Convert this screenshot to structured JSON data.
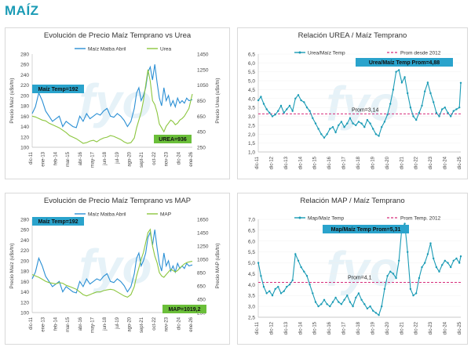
{
  "page_title": "MAÍZ",
  "chart_data": [
    {
      "type": "line",
      "title": "Evolución de Precio Maíz Temprano vs Urea",
      "ylabel": "Precio Maíz (u$s/tn)",
      "y2label": "Precio Urea (u$s/tn)",
      "ylim": [
        100,
        280
      ],
      "yticks": [
        100,
        120,
        140,
        160,
        180,
        200,
        220,
        240,
        260,
        280
      ],
      "y2lim": [
        250,
        1450
      ],
      "y2ticks": [
        250,
        450,
        650,
        850,
        1050,
        1250,
        1450
      ],
      "x_start": 2011.917,
      "x_end": 2026.0,
      "xticks": [
        "dic-11",
        "ene-13",
        "feb-14",
        "mar-15",
        "abr-16",
        "may-17",
        "jun-18",
        "jul-19",
        "ago-20",
        "sept-21",
        "oct-22",
        "nov-23",
        "dic-24",
        "ene-26"
      ],
      "legend": "top-center",
      "badges": [
        {
          "text": "Maíz Temp=192",
          "style": "blue"
        },
        {
          "text": "UREA=936",
          "style": "green"
        }
      ],
      "series": [
        {
          "name": "Maíz Matba Abril",
          "axis": "left",
          "color": "#2a8fd4",
          "x": [
            2011.92,
            2012.2,
            2012.5,
            2012.8,
            2013.1,
            2013.4,
            2013.7,
            2014.0,
            2014.3,
            2014.6,
            2014.9,
            2015.2,
            2015.5,
            2015.8,
            2016.1,
            2016.4,
            2016.7,
            2017.0,
            2017.3,
            2017.6,
            2017.9,
            2018.2,
            2018.5,
            2018.8,
            2019.1,
            2019.4,
            2019.7,
            2020.0,
            2020.3,
            2020.6,
            2020.9,
            2021.1,
            2021.3,
            2021.5,
            2021.7,
            2021.9,
            2022.1,
            2022.3,
            2022.5,
            2022.7,
            2022.9,
            2023.1,
            2023.3,
            2023.5,
            2023.7,
            2023.9,
            2024.1,
            2024.3,
            2024.5,
            2024.7,
            2024.9,
            2025.1,
            2025.3,
            2025.5,
            2025.7,
            2026.0
          ],
          "values": [
            165,
            178,
            205,
            190,
            170,
            160,
            150,
            155,
            160,
            140,
            150,
            145,
            140,
            138,
            160,
            150,
            165,
            155,
            160,
            165,
            162,
            170,
            175,
            160,
            158,
            165,
            160,
            152,
            140,
            150,
            175,
            205,
            215,
            190,
            200,
            215,
            245,
            255,
            230,
            260,
            225,
            195,
            180,
            215,
            190,
            200,
            180,
            190,
            178,
            195,
            185,
            190,
            185,
            195,
            190,
            192
          ]
        },
        {
          "name": "Urea",
          "axis": "right",
          "color": "#8cc63f",
          "x": [
            2011.92,
            2012.2,
            2012.5,
            2012.8,
            2013.1,
            2013.4,
            2013.7,
            2014.0,
            2014.3,
            2014.6,
            2014.9,
            2015.2,
            2015.5,
            2015.8,
            2016.1,
            2016.4,
            2016.7,
            2017.0,
            2017.3,
            2017.6,
            2017.9,
            2018.2,
            2018.5,
            2018.8,
            2019.1,
            2019.4,
            2019.7,
            2020.0,
            2020.3,
            2020.6,
            2020.9,
            2021.1,
            2021.3,
            2021.5,
            2021.7,
            2021.9,
            2022.1,
            2022.3,
            2022.5,
            2022.7,
            2022.9,
            2023.1,
            2023.3,
            2023.5,
            2023.7,
            2023.9,
            2024.1,
            2024.3,
            2024.5,
            2024.7,
            2024.9,
            2025.1,
            2025.3,
            2025.5,
            2025.7,
            2026.0
          ],
          "values": [
            650,
            640,
            620,
            600,
            590,
            560,
            540,
            520,
            500,
            470,
            440,
            400,
            380,
            360,
            330,
            300,
            310,
            330,
            340,
            320,
            350,
            370,
            380,
            400,
            390,
            370,
            350,
            320,
            300,
            310,
            370,
            500,
            600,
            700,
            850,
            1050,
            1250,
            1100,
            850,
            800,
            700,
            550,
            500,
            450,
            520,
            560,
            600,
            580,
            540,
            560,
            600,
            620,
            650,
            700,
            750,
            936
          ]
        }
      ]
    },
    {
      "type": "line",
      "title": "Relación UREA / Maíz Temprano",
      "ylim": [
        1.0,
        6.5
      ],
      "yticks": [
        "1,0",
        "1,5",
        "2,0",
        "2,5",
        "3,0",
        "3,5",
        "4,0",
        "4,5",
        "5,0",
        "5,5",
        "6,0",
        "6,5"
      ],
      "x_start": 2011.917,
      "x_end": 2026.0,
      "xticks": [
        "dic-11",
        "dic-12",
        "dic-13",
        "dic-14",
        "dic-15",
        "dic-16",
        "dic-17",
        "dic-18",
        "dic-19",
        "dic-20",
        "dic-21",
        "dic-22",
        "dic-23",
        "dic-24",
        "dic-25"
      ],
      "legend": "top-center",
      "avg_line": {
        "name": "Prom desde 2012",
        "value": 3.14,
        "label": "Prom=3,14",
        "color": "#d62d7a"
      },
      "badges": [
        {
          "text": "Urea/Maíz Temp Prom=4,88",
          "style": "blue"
        }
      ],
      "series": [
        {
          "name": "Urea/Maíz Temp",
          "color": "#1a9bb5",
          "x": [
            2011.92,
            2012.1,
            2012.3,
            2012.5,
            2012.7,
            2012.9,
            2013.1,
            2013.3,
            2013.5,
            2013.7,
            2013.9,
            2014.1,
            2014.3,
            2014.5,
            2014.7,
            2014.9,
            2015.1,
            2015.3,
            2015.5,
            2015.7,
            2015.9,
            2016.1,
            2016.3,
            2016.5,
            2016.7,
            2016.9,
            2017.1,
            2017.3,
            2017.5,
            2017.7,
            2017.9,
            2018.1,
            2018.3,
            2018.5,
            2018.7,
            2018.9,
            2019.1,
            2019.3,
            2019.5,
            2019.7,
            2019.9,
            2020.1,
            2020.3,
            2020.5,
            2020.7,
            2020.9,
            2021.1,
            2021.3,
            2021.5,
            2021.7,
            2021.9,
            2022.1,
            2022.3,
            2022.5,
            2022.7,
            2022.9,
            2023.1,
            2023.3,
            2023.5,
            2023.7,
            2023.9,
            2024.1,
            2024.3,
            2024.5,
            2024.7,
            2024.9,
            2025.1,
            2025.3,
            2025.5,
            2025.7,
            2025.9,
            2026.0
          ],
          "values": [
            3.9,
            4.1,
            3.7,
            3.4,
            3.2,
            3.0,
            3.1,
            3.3,
            3.6,
            3.2,
            3.4,
            3.6,
            3.3,
            4.0,
            4.2,
            3.9,
            3.8,
            3.5,
            3.3,
            2.9,
            2.6,
            2.3,
            2.0,
            1.8,
            2.0,
            2.3,
            2.4,
            2.1,
            2.5,
            2.7,
            2.4,
            2.6,
            2.9,
            2.6,
            2.5,
            2.7,
            2.6,
            2.4,
            2.8,
            2.6,
            2.3,
            2.0,
            1.9,
            2.4,
            2.7,
            3.1,
            3.7,
            4.5,
            5.5,
            5.6,
            4.9,
            5.2,
            4.3,
            3.5,
            3.0,
            2.8,
            3.2,
            3.6,
            4.4,
            4.9,
            4.3,
            3.8,
            3.2,
            3.0,
            3.4,
            3.5,
            3.2,
            3.0,
            3.3,
            3.4,
            3.5,
            4.88
          ]
        }
      ]
    },
    {
      "type": "line",
      "title": "Evolución de Precio Maíz Temprano vs MAP",
      "ylabel": "Precio Maíz (u$s/tn)",
      "y2label": "Precio MAP (u$s/tn)",
      "ylim": [
        100,
        280
      ],
      "yticks": [
        100,
        120,
        140,
        160,
        180,
        200,
        220,
        240,
        260,
        280
      ],
      "y2lim": [
        250,
        1650
      ],
      "y2ticks": [
        250,
        450,
        650,
        850,
        1050,
        1250,
        1450,
        1650
      ],
      "x_start": 2011.917,
      "x_end": 2026.0,
      "xticks": [
        "dic-11",
        "ene-13",
        "feb-14",
        "mar-15",
        "abr-16",
        "may-17",
        "jun-18",
        "jul-19",
        "ago-20",
        "sept-21",
        "oct-22",
        "nov-23",
        "dic-24",
        "ene-26"
      ],
      "legend": "top-center",
      "badges": [
        {
          "text": "Maíz Temp=192",
          "style": "blue"
        },
        {
          "text": "MAP=1019,2",
          "style": "green"
        }
      ],
      "series": [
        {
          "name": "Maíz Matba Abril",
          "axis": "left",
          "color": "#2a8fd4",
          "x": [
            2011.92,
            2012.2,
            2012.5,
            2012.8,
            2013.1,
            2013.4,
            2013.7,
            2014.0,
            2014.3,
            2014.6,
            2014.9,
            2015.2,
            2015.5,
            2015.8,
            2016.1,
            2016.4,
            2016.7,
            2017.0,
            2017.3,
            2017.6,
            2017.9,
            2018.2,
            2018.5,
            2018.8,
            2019.1,
            2019.4,
            2019.7,
            2020.0,
            2020.3,
            2020.6,
            2020.9,
            2021.1,
            2021.3,
            2021.5,
            2021.7,
            2021.9,
            2022.1,
            2022.3,
            2022.5,
            2022.7,
            2022.9,
            2023.1,
            2023.3,
            2023.5,
            2023.7,
            2023.9,
            2024.1,
            2024.3,
            2024.5,
            2024.7,
            2024.9,
            2025.1,
            2025.3,
            2025.5,
            2025.7,
            2026.0
          ],
          "values": [
            165,
            178,
            205,
            190,
            170,
            160,
            150,
            155,
            160,
            140,
            150,
            145,
            140,
            138,
            160,
            150,
            165,
            155,
            160,
            165,
            162,
            170,
            175,
            160,
            158,
            165,
            160,
            152,
            140,
            150,
            175,
            205,
            215,
            190,
            200,
            215,
            245,
            255,
            230,
            260,
            225,
            195,
            180,
            215,
            190,
            200,
            180,
            190,
            178,
            195,
            185,
            190,
            185,
            195,
            190,
            192
          ]
        },
        {
          "name": "MAP",
          "axis": "right",
          "color": "#8cc63f",
          "x": [
            2011.92,
            2012.2,
            2012.5,
            2012.8,
            2013.1,
            2013.4,
            2013.7,
            2014.0,
            2014.3,
            2014.6,
            2014.9,
            2015.2,
            2015.5,
            2015.8,
            2016.1,
            2016.4,
            2016.7,
            2017.0,
            2017.3,
            2017.6,
            2017.9,
            2018.2,
            2018.5,
            2018.8,
            2019.1,
            2019.4,
            2019.7,
            2020.0,
            2020.3,
            2020.6,
            2020.9,
            2021.1,
            2021.3,
            2021.5,
            2021.7,
            2021.9,
            2022.1,
            2022.3,
            2022.5,
            2022.7,
            2022.9,
            2023.1,
            2023.3,
            2023.5,
            2023.7,
            2023.9,
            2024.1,
            2024.3,
            2024.5,
            2024.7,
            2024.9,
            2025.1,
            2025.3,
            2025.5,
            2025.7,
            2026.0
          ],
          "values": [
            820,
            800,
            780,
            750,
            720,
            700,
            690,
            680,
            700,
            690,
            660,
            640,
            620,
            600,
            560,
            520,
            500,
            520,
            540,
            560,
            560,
            580,
            590,
            600,
            590,
            560,
            530,
            500,
            480,
            520,
            640,
            800,
            920,
            1050,
            1150,
            1300,
            1450,
            1500,
            1250,
            1100,
            1000,
            850,
            800,
            780,
            820,
            860,
            900,
            880,
            860,
            880,
            920,
            950,
            980,
            1000,
            1010,
            1019.2
          ]
        }
      ]
    },
    {
      "type": "line",
      "title": "Relación MAP / Maíz Temprano",
      "ylim": [
        2.5,
        7.0
      ],
      "yticks": [
        "2,5",
        "3,0",
        "3,5",
        "4,0",
        "4,5",
        "5,0",
        "5,5",
        "6,0",
        "6,5",
        "7,0"
      ],
      "x_start": 2011.917,
      "x_end": 2026.0,
      "xticks": [
        "dic-11",
        "dic-12",
        "dic-13",
        "dic-14",
        "dic-15",
        "dic-16",
        "dic-17",
        "dic-18",
        "dic-19",
        "dic-20",
        "dic-21",
        "dic-22",
        "dic-23",
        "dic-24",
        "dic-25"
      ],
      "legend": "top-center",
      "avg_line": {
        "name": "Prom Temp. 2012",
        "value": 4.1,
        "label": "Prom=4,1",
        "color": "#d62d7a"
      },
      "badges": [
        {
          "text": "Map/Maíz Temp Prom=5,31",
          "style": "blue"
        }
      ],
      "series": [
        {
          "name": "Map/Maíz Temp",
          "color": "#1a9bb5",
          "x": [
            2011.92,
            2012.1,
            2012.3,
            2012.5,
            2012.7,
            2012.9,
            2013.1,
            2013.3,
            2013.5,
            2013.7,
            2013.9,
            2014.1,
            2014.3,
            2014.5,
            2014.7,
            2014.9,
            2015.1,
            2015.3,
            2015.5,
            2015.7,
            2015.9,
            2016.1,
            2016.3,
            2016.5,
            2016.7,
            2016.9,
            2017.1,
            2017.3,
            2017.5,
            2017.7,
            2017.9,
            2018.1,
            2018.3,
            2018.5,
            2018.7,
            2018.9,
            2019.1,
            2019.3,
            2019.5,
            2019.7,
            2019.9,
            2020.1,
            2020.3,
            2020.5,
            2020.7,
            2020.9,
            2021.1,
            2021.3,
            2021.5,
            2021.7,
            2021.9,
            2022.1,
            2022.3,
            2022.5,
            2022.7,
            2022.9,
            2023.1,
            2023.3,
            2023.5,
            2023.7,
            2023.9,
            2024.1,
            2024.3,
            2024.5,
            2024.7,
            2024.9,
            2025.1,
            2025.3,
            2025.5,
            2025.7,
            2025.9,
            2026.0
          ],
          "values": [
            5.0,
            4.4,
            3.9,
            3.6,
            3.7,
            3.5,
            3.8,
            3.9,
            3.6,
            3.7,
            3.9,
            4.0,
            4.2,
            5.4,
            5.1,
            4.8,
            4.6,
            4.4,
            4.0,
            3.6,
            3.2,
            3.0,
            3.1,
            3.3,
            3.1,
            3.0,
            3.2,
            3.4,
            3.2,
            3.1,
            3.3,
            3.5,
            3.2,
            3.0,
            3.4,
            3.6,
            3.3,
            3.1,
            2.9,
            3.0,
            2.8,
            2.7,
            2.6,
            3.0,
            3.8,
            4.4,
            4.6,
            4.5,
            4.3,
            5.1,
            6.6,
            6.8,
            5.5,
            3.8,
            3.5,
            3.6,
            4.3,
            4.8,
            5.0,
            5.4,
            5.9,
            5.2,
            4.8,
            4.6,
            4.9,
            5.1,
            5.0,
            4.8,
            5.1,
            5.2,
            5.0,
            5.3
          ]
        }
      ]
    }
  ]
}
